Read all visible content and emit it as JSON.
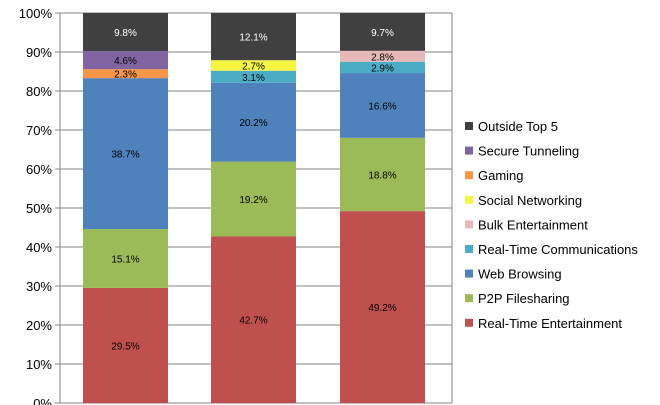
{
  "chart_data": {
    "type": "bar",
    "stacked": true,
    "percent_stacked": true,
    "categories": [
      "",
      "",
      ""
    ],
    "series": [
      {
        "name": "Real-Time Entertainment",
        "color": "#c0504d",
        "values": [
          29.5,
          42.7,
          49.2
        ]
      },
      {
        "name": "P2P Filesharing",
        "color": "#9bbb59",
        "values": [
          15.1,
          19.2,
          18.8
        ]
      },
      {
        "name": "Web Browsing",
        "color": "#4f81bd",
        "values": [
          38.7,
          20.2,
          16.6
        ]
      },
      {
        "name": "Real-Time Communications",
        "color": "#4bacc6",
        "values": [
          0,
          3.1,
          2.9
        ]
      },
      {
        "name": "Bulk Entertainment",
        "color": "#e6b9b8",
        "values": [
          0,
          0,
          2.8
        ]
      },
      {
        "name": "Social Networking",
        "color": "#f5f542",
        "values": [
          0,
          2.7,
          0
        ]
      },
      {
        "name": "Gaming",
        "color": "#f79646",
        "values": [
          2.3,
          0,
          0
        ]
      },
      {
        "name": "Secure Tunneling",
        "color": "#8064a2",
        "values": [
          4.6,
          0,
          0
        ]
      },
      {
        "name": "Outside Top 5",
        "color": "#404040",
        "values": [
          9.8,
          12.1,
          9.7
        ]
      }
    ],
    "data_labels": [
      [
        "29.5%",
        "15.1%",
        "38.7%",
        "",
        "",
        "",
        "2.3%",
        "4.6%",
        "9.8%"
      ],
      [
        "42.7%",
        "19.2%",
        "20.2%",
        "3.1%",
        "",
        "2.7%",
        "",
        "",
        "12.1%"
      ],
      [
        "49.2%",
        "18.8%",
        "16.6%",
        "2.9%",
        "2.8%",
        "",
        "",
        "",
        "9.7%"
      ]
    ],
    "y_ticks": [
      "0%",
      "10%",
      "20%",
      "30%",
      "40%",
      "50%",
      "60%",
      "70%",
      "80%",
      "90%",
      "100%"
    ],
    "ylim": [
      0,
      100
    ],
    "grid": true,
    "legend_position": "right",
    "legend_order": [
      "Outside Top 5",
      "Secure Tunneling",
      "Gaming",
      "Social Networking",
      "Bulk Entertainment",
      "Real-Time Communications",
      "Web Browsing",
      "P2P Filesharing",
      "Real-Time Entertainment"
    ],
    "title": "",
    "xlabel": "",
    "ylabel": ""
  }
}
